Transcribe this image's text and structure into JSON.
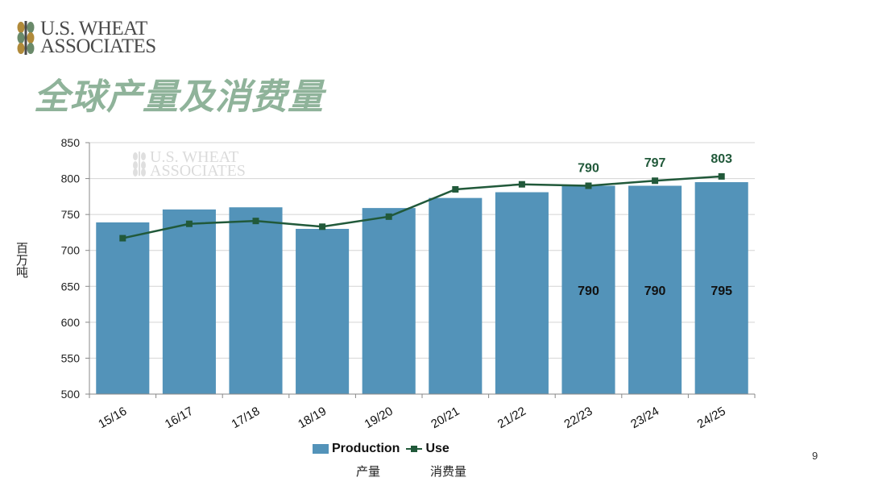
{
  "logo": {
    "line1": "U.S. WHEAT",
    "line2": "ASSOCIATES"
  },
  "title": "全球产量及消费量",
  "page_number": "9",
  "watermark": {
    "line1": "U.S. WHEAT",
    "line2": "ASSOCIATES"
  },
  "legend": {
    "production": "Production",
    "use": "Use",
    "production_cn": "产量",
    "use_cn": "消费量"
  },
  "colors": {
    "bar": "#5393b9",
    "line": "#21593a",
    "title": "#8fb39a"
  },
  "chart_data": {
    "type": "bar+line",
    "title": "",
    "xlabel": "",
    "ylabel": "百万吨",
    "ylim": [
      500,
      850
    ],
    "yticks": [
      500,
      550,
      600,
      650,
      700,
      750,
      800,
      850
    ],
    "grid": true,
    "legend_position": "bottom",
    "categories": [
      "15/16",
      "16/17",
      "17/18",
      "18/19",
      "19/20",
      "20/21",
      "21/22",
      "22/23",
      "23/24",
      "24/25"
    ],
    "series": [
      {
        "name": "Production",
        "type": "bar",
        "values": [
          739,
          757,
          760,
          730,
          759,
          773,
          781,
          790,
          790,
          795
        ],
        "labels": [
          "",
          "",
          "",
          "",
          "",
          "",
          "",
          "790",
          "790",
          "795"
        ]
      },
      {
        "name": "Use",
        "type": "line",
        "values": [
          717,
          737,
          741,
          733,
          747,
          785,
          792,
          790,
          797,
          803
        ],
        "labels": [
          "",
          "",
          "",
          "",
          "",
          "",
          "",
          "790",
          "797",
          "803"
        ]
      }
    ]
  }
}
